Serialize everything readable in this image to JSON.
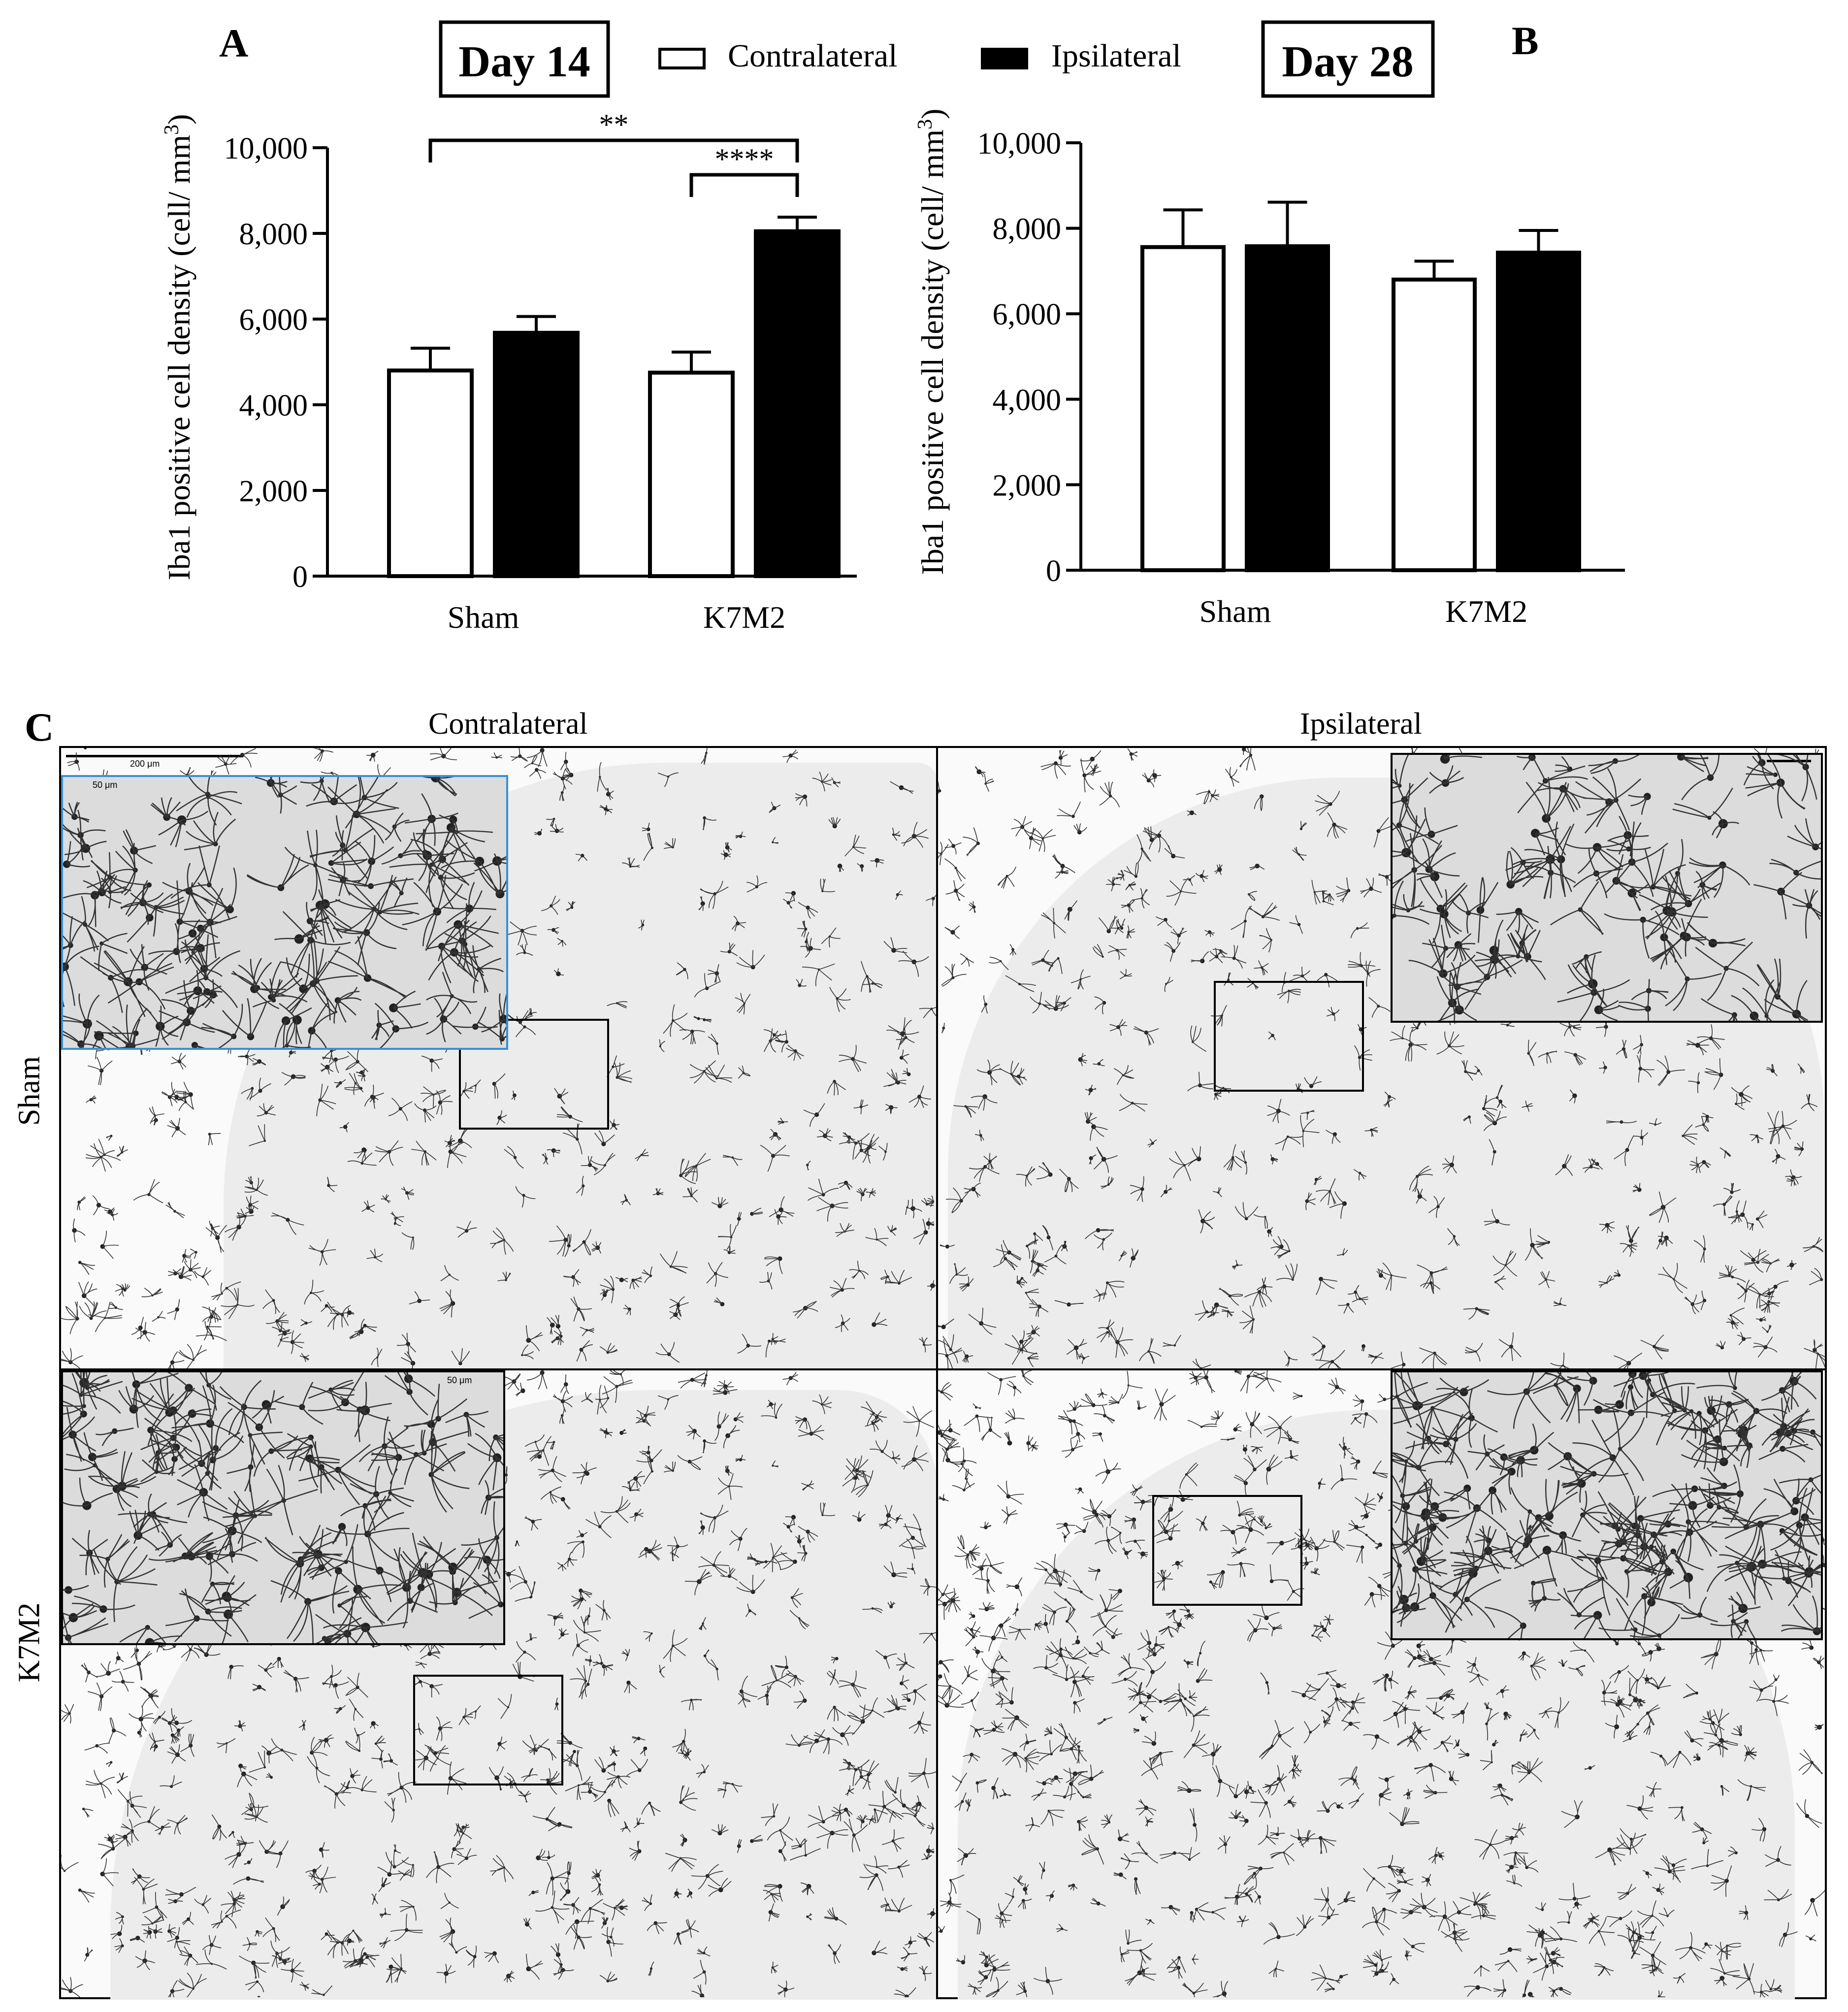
{
  "panels": {
    "a_letter": "A",
    "b_letter": "B",
    "c_letter": "C"
  },
  "legend": {
    "contralateral": "Contralateral",
    "ipsilateral": "Ipsilateral",
    "contralateral_color": "#ffffff",
    "ipsilateral_color": "#000000"
  },
  "chart_data": [
    {
      "type": "bar",
      "panel": "A",
      "title": "Day 14",
      "ylabel": "Iba1 positive cell density (cell/ mm",
      "ylabel_sup": "3",
      "ylabel_end": ")",
      "ylim": [
        0,
        10000
      ],
      "yticks": [
        "0",
        "2,000",
        "4,000",
        "6,000",
        "8,000",
        "10,000"
      ],
      "ytick_values": [
        0,
        2000,
        4000,
        6000,
        8000,
        10000
      ],
      "categories": [
        "Sham",
        "K7M2"
      ],
      "series": [
        {
          "name": "Contralateral",
          "values": [
            4800,
            4750
          ],
          "errors": [
            520,
            480
          ],
          "color": "#ffffff"
        },
        {
          "name": "Ipsilateral",
          "values": [
            5680,
            8050
          ],
          "errors": [
            380,
            330
          ],
          "color": "#000000"
        }
      ],
      "significance": [
        {
          "label": "**",
          "from": "Sham-Contralateral",
          "to": "K7M2-Ipsilateral"
        },
        {
          "label": "****",
          "from": "K7M2-Contralateral",
          "to": "K7M2-Ipsilateral"
        }
      ]
    },
    {
      "type": "bar",
      "panel": "B",
      "title": "Day 28",
      "ylabel": "Iba1 positive cell density (cell/ mm",
      "ylabel_sup": "3",
      "ylabel_end": ")",
      "ylim": [
        0,
        10000
      ],
      "yticks": [
        "0",
        "2,000",
        "4,000",
        "6,000",
        "8,000",
        "10,000"
      ],
      "ytick_values": [
        0,
        2000,
        4000,
        6000,
        8000,
        10000
      ],
      "categories": [
        "Sham",
        "K7M2"
      ],
      "series": [
        {
          "name": "Contralateral",
          "values": [
            7560,
            6800
          ],
          "errors": [
            870,
            430
          ],
          "color": "#ffffff"
        },
        {
          "name": "Ipsilateral",
          "values": [
            7580,
            7430
          ],
          "errors": [
            1030,
            520
          ],
          "color": "#000000"
        }
      ]
    }
  ],
  "micrographs": {
    "col_contralateral": "Contralateral",
    "col_ipsilateral": "Ipsilateral",
    "row_sham": "Sham",
    "row_k7m2": "K7M2",
    "scale_main": "200 μm",
    "scale_inset": "50 μm",
    "inset_highlight_color": "#3a8fd6"
  }
}
